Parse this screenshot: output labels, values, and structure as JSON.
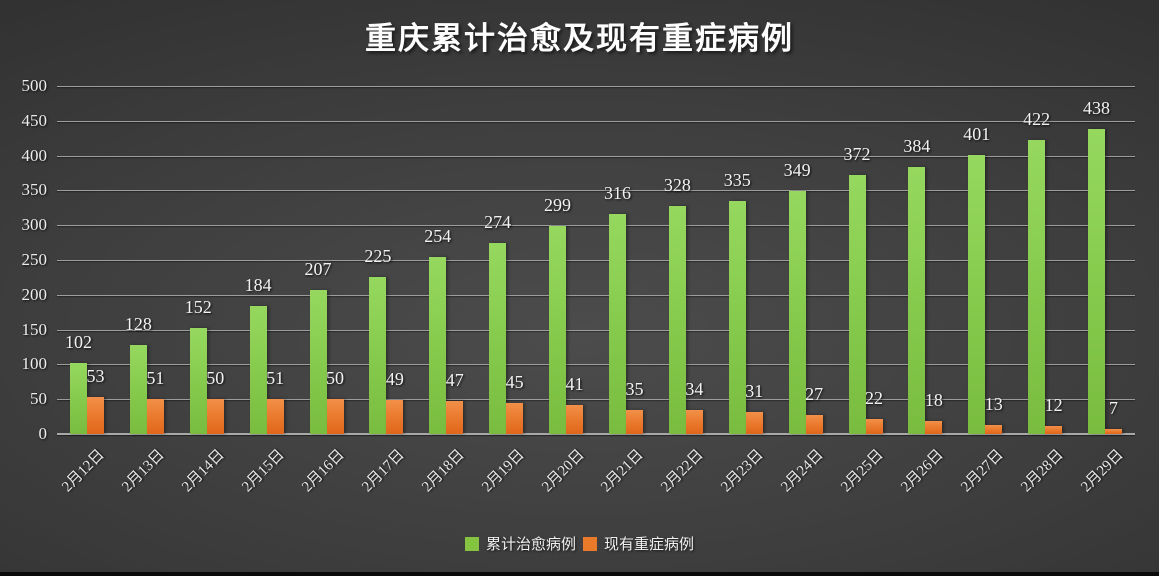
{
  "chart_data": {
    "type": "bar",
    "title": "重庆累计治愈及现有重症病例",
    "categories": [
      "2月12日",
      "2月13日",
      "2月14日",
      "2月15日",
      "2月16日",
      "2月17日",
      "2月18日",
      "2月19日",
      "2月20日",
      "2月21日",
      "2月22日",
      "2月23日",
      "2月24日",
      "2月25日",
      "2月26日",
      "2月27日",
      "2月28日",
      "2月29日"
    ],
    "series": [
      {
        "name": "累计治愈病例",
        "color": "#84C441",
        "values": [
          102,
          128,
          152,
          184,
          207,
          225,
          254,
          274,
          299,
          316,
          328,
          335,
          349,
          372,
          384,
          401,
          422,
          438
        ]
      },
      {
        "name": "现有重症病例",
        "color": "#EA7A2A",
        "values": [
          53,
          51,
          50,
          51,
          50,
          49,
          47,
          45,
          41,
          35,
          34,
          31,
          27,
          22,
          18,
          13,
          12,
          7
        ]
      }
    ],
    "xlabel": "",
    "ylabel": "",
    "ylim": [
      0,
      500
    ],
    "y_axis": {
      "min": 0,
      "max": 500,
      "step": 50
    },
    "grid": true,
    "legend_position": "bottom",
    "background_color": "#3D3D3D",
    "text_color": "#F2F2F2",
    "gridline_color": "#9D9D9D"
  }
}
